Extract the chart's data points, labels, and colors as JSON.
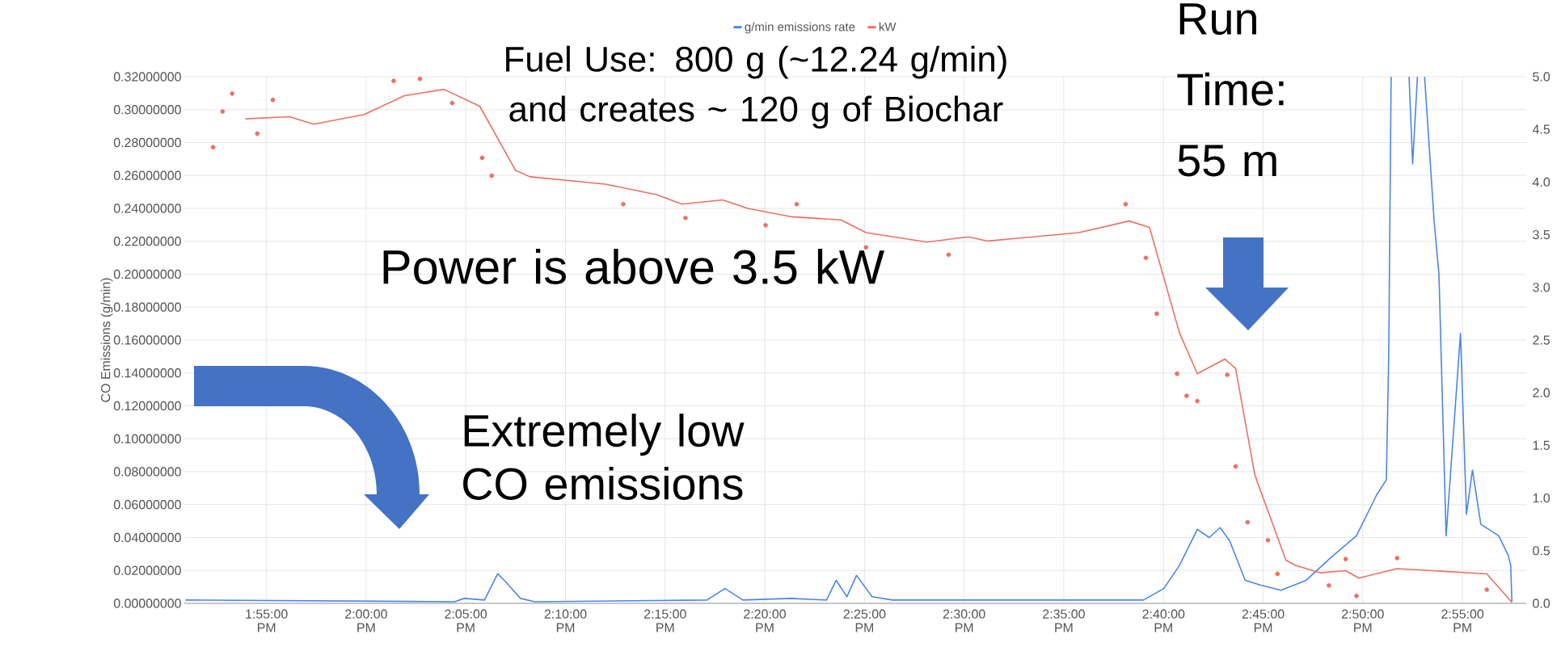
{
  "chart_data": {
    "type": "line",
    "ylabel": "CO Emissions (g/min)",
    "annotations": [
      "Fuel Use: 800 g  (~12.24 g/min) and creates ~ 120 g of Biochar",
      "Run Time: 55 m",
      "Power is above 3.5 kW",
      "Extremely low CO emissions"
    ],
    "xlim": [
      13.848,
      14.97
    ],
    "xticks": [
      {
        "value": 13.9167,
        "label": "1:55:00 PM"
      },
      {
        "value": 14.0,
        "label": "2:00:00 PM"
      },
      {
        "value": 14.0833,
        "label": "2:05:00 PM"
      },
      {
        "value": 14.1667,
        "label": "2:10:00 PM"
      },
      {
        "value": 14.25,
        "label": "2:15:00 PM"
      },
      {
        "value": 14.3333,
        "label": "2:20:00 PM"
      },
      {
        "value": 14.4167,
        "label": "2:25:00 PM"
      },
      {
        "value": 14.5,
        "label": "2:30:00 PM"
      },
      {
        "value": 14.5833,
        "label": "2:35:00 PM"
      },
      {
        "value": 14.6667,
        "label": "2:40:00 PM"
      },
      {
        "value": 14.75,
        "label": "2:45:00 PM"
      },
      {
        "value": 14.8333,
        "label": "2:50:00 PM"
      },
      {
        "value": 14.9167,
        "label": "2:55:00 PM"
      }
    ],
    "ylim": [
      0,
      0.32
    ],
    "yticks": [
      {
        "value": 0,
        "label": "0.00000000"
      },
      {
        "value": 0.02,
        "label": "0.02000000"
      },
      {
        "value": 0.04,
        "label": "0.04000000"
      },
      {
        "value": 0.06,
        "label": "0.06000000"
      },
      {
        "value": 0.08,
        "label": "0.08000000"
      },
      {
        "value": 0.1,
        "label": "0.10000000"
      },
      {
        "value": 0.12,
        "label": "0.12000000"
      },
      {
        "value": 0.14,
        "label": "0.14000000"
      },
      {
        "value": 0.16,
        "label": "0.16000000"
      },
      {
        "value": 0.18,
        "label": "0.18000000"
      },
      {
        "value": 0.2,
        "label": "0.20000000"
      },
      {
        "value": 0.22,
        "label": "0.22000000"
      },
      {
        "value": 0.24,
        "label": "0.24000000"
      },
      {
        "value": 0.26,
        "label": "0.26000000"
      },
      {
        "value": 0.28,
        "label": "0.28000000"
      },
      {
        "value": 0.3,
        "label": "0.30000000"
      },
      {
        "value": 0.32,
        "label": "0.32000000"
      }
    ],
    "y2lim": [
      0,
      5
    ],
    "y2ticks": [
      {
        "value": 0,
        "label": "0.0"
      },
      {
        "value": 0.5,
        "label": "0.5"
      },
      {
        "value": 1,
        "label": "1.0"
      },
      {
        "value": 1.5,
        "label": "1.5"
      },
      {
        "value": 2,
        "label": "2.0"
      },
      {
        "value": 2.5,
        "label": "2.5"
      },
      {
        "value": 3,
        "label": "3.0"
      },
      {
        "value": 3.5,
        "label": "3.5"
      },
      {
        "value": 4,
        "label": "4.0"
      },
      {
        "value": 4.5,
        "label": "4.5"
      },
      {
        "value": 5,
        "label": "5.0"
      }
    ],
    "grid": true,
    "legend": "top",
    "series": [
      {
        "name": "g/min emissions rate",
        "color": "#4a86e8",
        "x": [
          13.849,
          14.074,
          14.082,
          14.099,
          14.11,
          14.118,
          14.129,
          14.141,
          14.285,
          14.3,
          14.315,
          14.355,
          14.385,
          14.393,
          14.402,
          14.41,
          14.423,
          14.44,
          14.65,
          14.667,
          14.68,
          14.695,
          14.705,
          14.714,
          14.722,
          14.735,
          14.748,
          14.765,
          14.786,
          14.807,
          14.828,
          14.845,
          14.853,
          14.855,
          14.857,
          14.865,
          14.872,
          14.875,
          14.879,
          14.882,
          14.885,
          14.893,
          14.897,
          14.903,
          14.915,
          14.92,
          14.925,
          14.932,
          14.947,
          14.955,
          14.957,
          14.958
        ],
        "values": [
          0.002,
          0.001,
          0.003,
          0.002,
          0.018,
          0.012,
          0.003,
          0.001,
          0.002,
          0.009,
          0.002,
          0.003,
          0.002,
          0.014,
          0.004,
          0.017,
          0.004,
          0.002,
          0.002,
          0.009,
          0.023,
          0.045,
          0.04,
          0.046,
          0.038,
          0.014,
          0.011,
          0.008,
          0.014,
          0.028,
          0.041,
          0.066,
          0.075,
          0.15,
          0.32,
          null,
          0.32,
          0.267,
          0.32,
          null,
          0.32,
          0.232,
          0.2,
          0.041,
          0.164,
          0.054,
          0.081,
          0.048,
          0.041,
          0.029,
          0.023,
          0.001
        ]
      },
      {
        "name": "kW",
        "color": "#ec7063",
        "axis": "y2",
        "x": [
          13.899,
          13.936,
          13.956,
          13.998,
          14.032,
          14.065,
          14.095,
          14.125,
          14.137,
          14.2,
          14.243,
          14.264,
          14.298,
          14.319,
          14.356,
          14.397,
          14.418,
          14.469,
          14.503,
          14.52,
          14.596,
          14.638,
          14.655,
          14.68,
          14.695,
          14.718,
          14.727,
          14.743,
          14.769,
          14.777,
          14.798,
          14.819,
          14.83,
          14.862,
          14.937,
          14.958
        ],
        "values": [
          4.6,
          4.62,
          4.55,
          4.64,
          4.82,
          4.88,
          4.72,
          4.11,
          4.05,
          3.98,
          3.88,
          3.79,
          3.83,
          3.75,
          3.67,
          3.64,
          3.52,
          3.43,
          3.48,
          3.44,
          3.52,
          3.63,
          3.57,
          2.57,
          2.18,
          2.32,
          2.23,
          1.22,
          0.41,
          0.36,
          0.29,
          0.31,
          0.24,
          0.33,
          0.28,
          0.01
        ]
      },
      {
        "type": "scatter",
        "color": "#ec7063",
        "axis": "y2",
        "x": [
          13.872,
          13.88,
          13.888,
          13.909,
          13.922,
          14.023,
          14.045,
          14.072,
          14.097,
          14.105,
          14.215,
          14.267,
          14.334,
          14.36,
          14.418,
          14.487,
          14.635,
          14.652,
          14.661,
          14.678,
          14.686,
          14.695,
          14.72,
          14.727,
          14.737,
          14.754,
          14.762,
          14.805,
          14.819,
          14.828,
          14.862,
          14.937
        ],
        "values": [
          4.33,
          4.67,
          4.84,
          4.46,
          4.78,
          4.96,
          4.98,
          4.75,
          4.23,
          4.06,
          3.79,
          3.66,
          3.59,
          3.79,
          3.38,
          3.31,
          3.79,
          3.28,
          2.75,
          2.18,
          1.97,
          1.92,
          2.17,
          1.3,
          0.77,
          0.6,
          0.28,
          0.17,
          0.42,
          0.07,
          0.43,
          0.13
        ]
      }
    ]
  }
}
